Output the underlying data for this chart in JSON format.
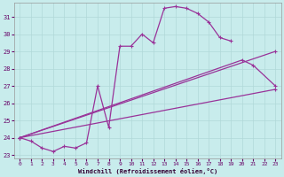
{
  "bg_color": "#c8ecec",
  "grid_color": "#b0d8d8",
  "line_color": "#993399",
  "xlim": [
    -0.5,
    23.5
  ],
  "ylim": [
    22.8,
    31.8
  ],
  "yticks": [
    23,
    24,
    25,
    26,
    27,
    28,
    29,
    30,
    31
  ],
  "xticks": [
    0,
    1,
    2,
    3,
    4,
    5,
    6,
    7,
    8,
    9,
    10,
    11,
    12,
    13,
    14,
    15,
    16,
    17,
    18,
    19,
    20,
    21,
    22,
    23
  ],
  "xlabel": "Windchill (Refroidissement éolien,°C)",
  "curve1_x": [
    0,
    1,
    2,
    3,
    4,
    5,
    6,
    7,
    8,
    9,
    10,
    11,
    12,
    13,
    14,
    15,
    16,
    17,
    18,
    19
  ],
  "curve1_y": [
    24.0,
    23.8,
    23.4,
    23.2,
    23.5,
    23.4,
    23.7,
    27.0,
    24.6,
    29.3,
    29.3,
    30.0,
    29.5,
    31.5,
    31.6,
    31.5,
    31.2,
    30.7,
    29.8,
    29.6
  ],
  "curve2_x": [
    0,
    20,
    21,
    23
  ],
  "curve2_y": [
    24.0,
    28.5,
    28.2,
    27.0
  ],
  "line1_x": [
    0,
    23
  ],
  "line1_y": [
    24.0,
    29.0
  ],
  "line2_x": [
    0,
    23
  ],
  "line2_y": [
    24.0,
    26.8
  ]
}
